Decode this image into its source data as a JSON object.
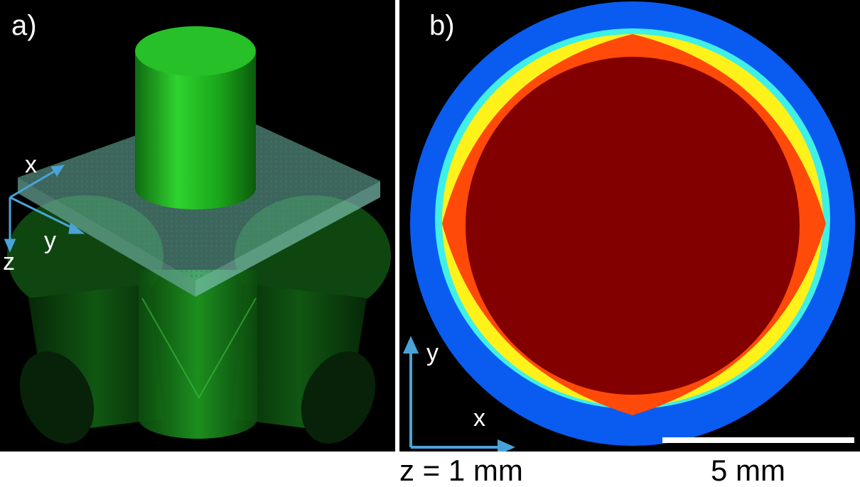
{
  "panel_a": {
    "label": "a)",
    "axes": {
      "x": "x",
      "y": "y",
      "z": "z"
    }
  },
  "panel_b": {
    "label": "b)",
    "axes": {
      "x": "x",
      "y": "y"
    },
    "depth_caption": "z = 1 mm",
    "scale_bar_label": "5 mm"
  },
  "colors": {
    "background": "#000000",
    "green_beam": "#22bb22",
    "plate": "#8fd8c8",
    "axis_arrow": "#4aa3d8",
    "ring_blue": "#0a5cf0",
    "ring_cyan": "#3ff0e6",
    "ring_yellow": "#fff21a",
    "ring_orange": "#ff4a0a",
    "core_darkred": "#820000"
  }
}
